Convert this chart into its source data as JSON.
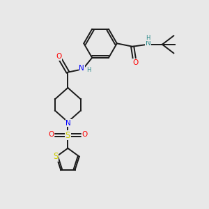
{
  "background_color": "#e8e8e8",
  "bond_color": "#1a1a1a",
  "atom_colors": {
    "N": "#0000ff",
    "O": "#ff0000",
    "S": "#cccc00",
    "H": "#2e8b8b",
    "C": "#1a1a1a"
  },
  "figsize": [
    3.0,
    3.0
  ],
  "dpi": 100
}
